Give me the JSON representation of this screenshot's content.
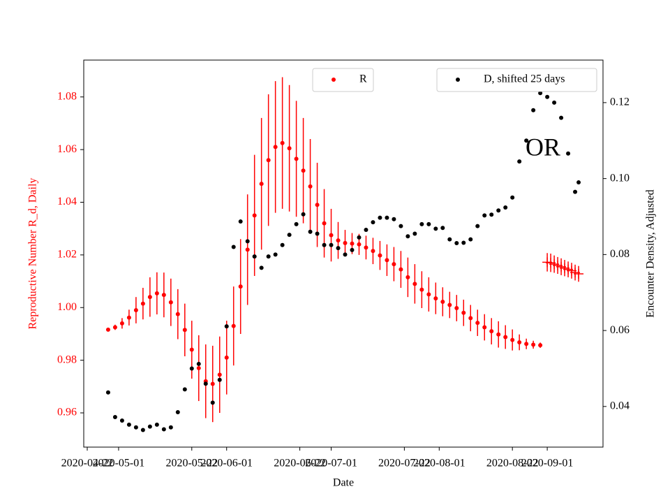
{
  "chart_data": {
    "type": "scatter",
    "xlabel": "Date",
    "ylabel": "Reproductive Number R_d, Daily",
    "ylabel_color": "#ff0000",
    "y2label": "Encounter Density, Adjusted",
    "annotation": "OR",
    "xlim": [
      "2020-04-21",
      "2020-09-17"
    ],
    "xticks": [
      "2020-04-22",
      "2020-05-01",
      "2020-05-22",
      "2020-06-01",
      "2020-06-22",
      "2020-07-01",
      "2020-07-22",
      "2020-08-01",
      "2020-08-22",
      "2020-09-01"
    ],
    "ylim": [
      0.947,
      1.094
    ],
    "yticks": [
      0.96,
      0.98,
      {
        "value": 1,
        "label": "1.00"
      },
      1.02,
      1.04,
      1.06,
      1.08
    ],
    "y2lim": [
      0.0293,
      0.1312
    ],
    "y2ticks": [
      0.04,
      0.06,
      0.08,
      {
        "value": 0.1,
        "label": "0.10"
      },
      0.12
    ],
    "series": [
      {
        "name": "R",
        "color": "#ff0000",
        "marker": "o",
        "legend": "upper center",
        "x": [
          "2020-04-28",
          "2020-04-30",
          "2020-05-02",
          "2020-05-04",
          "2020-05-06",
          "2020-05-08",
          "2020-05-10",
          "2020-05-12",
          "2020-05-14",
          "2020-05-16",
          "2020-05-18",
          "2020-05-20",
          "2020-05-22",
          "2020-05-24",
          "2020-05-26",
          "2020-05-28",
          "2020-05-30",
          "2020-06-01",
          "2020-06-03",
          "2020-06-05",
          "2020-06-07",
          "2020-06-09",
          "2020-06-11",
          "2020-06-13",
          "2020-06-15",
          "2020-06-17",
          "2020-06-19",
          "2020-06-21",
          "2020-06-23",
          "2020-06-25",
          "2020-06-27",
          "2020-06-29",
          "2020-07-01",
          "2020-07-03",
          "2020-07-05",
          "2020-07-07",
          "2020-07-09",
          "2020-07-11",
          "2020-07-13",
          "2020-07-15",
          "2020-07-17",
          "2020-07-19",
          "2020-07-21",
          "2020-07-23",
          "2020-07-25",
          "2020-07-27",
          "2020-07-29",
          "2020-07-31",
          "2020-08-02",
          "2020-08-04",
          "2020-08-06",
          "2020-08-08",
          "2020-08-10",
          "2020-08-12",
          "2020-08-14",
          "2020-08-16",
          "2020-08-18",
          "2020-08-20",
          "2020-08-22",
          "2020-08-24",
          "2020-08-26",
          "2020-08-28",
          "2020-08-30"
        ],
        "values": [
          0.9916,
          0.9925,
          0.994,
          0.9962,
          0.999,
          1.0015,
          1.004,
          1.0054,
          1.0048,
          1.002,
          0.9975,
          0.9915,
          0.984,
          0.977,
          0.972,
          0.971,
          0.9745,
          0.981,
          0.993,
          1.008,
          1.022,
          1.035,
          1.047,
          1.056,
          1.061,
          1.0625,
          1.0605,
          1.0565,
          1.052,
          1.046,
          1.039,
          1.032,
          1.0275,
          1.0255,
          1.0245,
          1.0243,
          1.024,
          1.0228,
          1.0215,
          1.0198,
          1.018,
          1.0165,
          1.0145,
          1.0115,
          1.009,
          1.0068,
          1.005,
          1.0035,
          1.0022,
          1.001,
          0.9998,
          0.998,
          0.996,
          0.9942,
          0.9925,
          0.991,
          0.9898,
          0.9888,
          0.9877,
          0.9868,
          0.9862,
          0.9859,
          0.9857
        ],
        "errors": [
          0.0005,
          0.001,
          0.002,
          0.003,
          0.005,
          0.006,
          0.0075,
          0.008,
          0.0085,
          0.009,
          0.0095,
          0.01,
          0.011,
          0.0125,
          0.014,
          0.0145,
          0.0145,
          0.014,
          0.015,
          0.018,
          0.021,
          0.023,
          0.025,
          0.025,
          0.025,
          0.025,
          0.024,
          0.022,
          0.02,
          0.018,
          0.016,
          0.013,
          0.01,
          0.007,
          0.005,
          0.004,
          0.004,
          0.0045,
          0.005,
          0.0055,
          0.006,
          0.0065,
          0.007,
          0.0075,
          0.0075,
          0.007,
          0.0065,
          0.006,
          0.0055,
          0.005,
          0.005,
          0.005,
          0.005,
          0.005,
          0.005,
          0.005,
          0.005,
          0.0045,
          0.004,
          0.003,
          0.002,
          0.0015,
          0.001
        ]
      },
      {
        "color": "#ff0000",
        "marker": "+",
        "x": [
          "2020-09-01",
          "2020-09-02",
          "2020-09-03",
          "2020-09-04",
          "2020-09-05",
          "2020-09-06",
          "2020-09-07",
          "2020-09-08",
          "2020-09-09",
          "2020-09-10"
        ],
        "values": [
          1.0172,
          1.017,
          1.0165,
          1.016,
          1.0155,
          1.015,
          1.0145,
          1.014,
          1.0133,
          1.0128
        ],
        "errors": [
          0.0035,
          0.0035,
          0.0033,
          0.0032,
          0.0032,
          0.0031,
          0.003,
          0.003,
          0.003,
          0.003
        ]
      },
      {
        "name": "D, shifted 25 days",
        "color": "#000000",
        "marker": "o",
        "axis": "y2",
        "legend": "upper right",
        "x": [
          "2020-04-28",
          "2020-04-30",
          "2020-05-02",
          "2020-05-04",
          "2020-05-06",
          "2020-05-08",
          "2020-05-10",
          "2020-05-12",
          "2020-05-14",
          "2020-05-16",
          "2020-05-18",
          "2020-05-20",
          "2020-05-22",
          "2020-05-24",
          "2020-05-26",
          "2020-05-28",
          "2020-05-30",
          "2020-06-01",
          "2020-06-03",
          "2020-06-05",
          "2020-06-07",
          "2020-06-09",
          "2020-06-11",
          "2020-06-13",
          "2020-06-15",
          "2020-06-17",
          "2020-06-19",
          "2020-06-21",
          "2020-06-23",
          "2020-06-25",
          "2020-06-27",
          "2020-06-29",
          "2020-07-01",
          "2020-07-03",
          "2020-07-05",
          "2020-07-07",
          "2020-07-09",
          "2020-07-11",
          "2020-07-13",
          "2020-07-15",
          "2020-07-17",
          "2020-07-19",
          "2020-07-21",
          "2020-07-23",
          "2020-07-25",
          "2020-07-27",
          "2020-07-29",
          "2020-07-31",
          "2020-08-02",
          "2020-08-04",
          "2020-08-06",
          "2020-08-08",
          "2020-08-10",
          "2020-08-12",
          "2020-08-14",
          "2020-08-16",
          "2020-08-18",
          "2020-08-20",
          "2020-08-22",
          "2020-08-24",
          "2020-08-26",
          "2020-08-28",
          "2020-08-30",
          "2020-09-01",
          "2020-09-03",
          "2020-09-05",
          "2020-09-07",
          "2020-09-09",
          "2020-09-10"
        ],
        "values": [
          0.0437,
          0.0372,
          0.0363,
          0.0352,
          0.0345,
          0.0338,
          0.0347,
          0.0352,
          0.034,
          0.0345,
          0.0385,
          0.0445,
          0.05,
          0.0512,
          0.046,
          0.041,
          0.047,
          0.0611,
          0.082,
          0.0887,
          0.0835,
          0.0795,
          0.0765,
          0.0795,
          0.08,
          0.0825,
          0.0852,
          0.088,
          0.0906,
          0.086,
          0.0855,
          0.0825,
          0.0825,
          0.0817,
          0.08,
          0.0812,
          0.0845,
          0.0865,
          0.0885,
          0.0897,
          0.0897,
          0.0893,
          0.0875,
          0.0848,
          0.0855,
          0.088,
          0.088,
          0.0868,
          0.087,
          0.084,
          0.083,
          0.0831,
          0.084,
          0.0875,
          0.0903,
          0.0905,
          0.0916,
          0.0924,
          0.095,
          0.1045,
          0.11,
          0.118,
          0.1225,
          0.1215,
          0.12,
          0.116,
          0.1066,
          0.0965,
          0.099
        ]
      }
    ]
  }
}
